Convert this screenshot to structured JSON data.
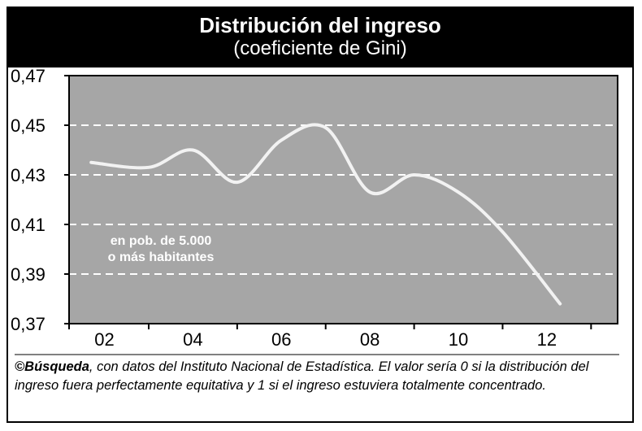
{
  "header": {
    "title": "Distribución del ingreso",
    "subtitle": "(coeficiente de Gini)"
  },
  "annotation": [
    "en pob. de 5.000",
    "o más habitantes"
  ],
  "caption": {
    "brand": "©Búsqueda",
    "text": ", con datos del Instituto Nacional de Estadística. El valor sería 0 si la distribución del ingreso fuera perfectamente equitativa y 1 si el ingreso estuviera totalmente concentrado."
  },
  "colors": {
    "plot_background": "#a6a6a6",
    "line": "#f2f2f2",
    "grid": "#ffffff",
    "header_background": "#000000"
  },
  "chart_data": {
    "type": "line",
    "title": "Distribución del ingreso",
    "subtitle": "(coeficiente de Gini)",
    "xlabel": "",
    "ylabel": "",
    "x_tick_labels": [
      "02",
      "04",
      "06",
      "08",
      "10",
      "12"
    ],
    "y_tick_labels": [
      "0,37",
      "0,39",
      "0,41",
      "0,43",
      "0,45",
      "0,47"
    ],
    "ylim": [
      0.37,
      0.47
    ],
    "xlim": [
      2001.2,
      2013.6
    ],
    "grid": "horizontal dashed",
    "series": [
      {
        "x": [
          2001.7,
          2003,
          2004,
          2005,
          2006,
          2007,
          2008,
          2009,
          2010,
          2011,
          2012.3
        ],
        "values": [
          0.435,
          0.433,
          0.44,
          0.427,
          0.444,
          0.449,
          0.423,
          0.43,
          0.423,
          0.407,
          0.378
        ]
      }
    ]
  }
}
